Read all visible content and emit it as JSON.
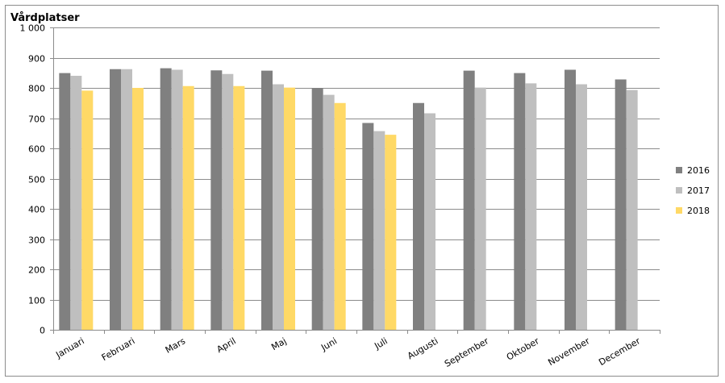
{
  "chart_data": {
    "type": "bar",
    "title": "Vårdplatser",
    "xlabel": "",
    "ylabel": "",
    "ylim": [
      0,
      1000
    ],
    "yticks": [
      0,
      100,
      200,
      300,
      400,
      500,
      600,
      700,
      800,
      900,
      1000
    ],
    "ytick_labels": [
      "0",
      "100",
      "200",
      "300",
      "400",
      "500",
      "600",
      "700",
      "800",
      "900",
      "1 000"
    ],
    "grid": true,
    "legend_position": "right",
    "categories": [
      "Januari",
      "Februari",
      "Mars",
      "April",
      "Maj",
      "Juni",
      "Juli",
      "Augusti",
      "September",
      "Oktober",
      "November",
      "December"
    ],
    "series": [
      {
        "name": "2016",
        "color": "#808080",
        "values": [
          849,
          862,
          865,
          858,
          857,
          800,
          684,
          750,
          857,
          849,
          860,
          828
        ]
      },
      {
        "name": "2017",
        "color": "#bfbfbf",
        "values": [
          840,
          862,
          860,
          846,
          812,
          777,
          657,
          716,
          801,
          815,
          812,
          793
        ]
      },
      {
        "name": "2018",
        "color": "#ffd966",
        "values": [
          791,
          800,
          806,
          806,
          801,
          750,
          645,
          null,
          null,
          null,
          null,
          null
        ]
      }
    ]
  }
}
